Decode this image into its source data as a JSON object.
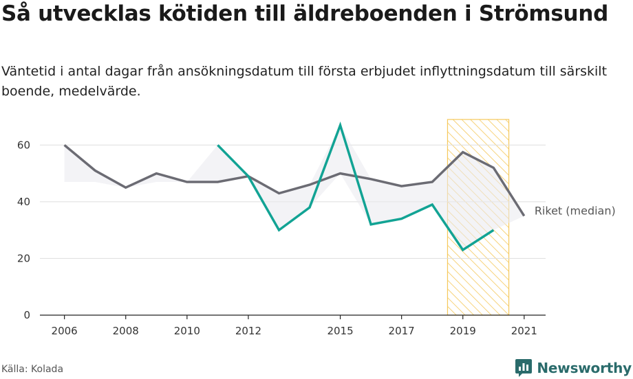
{
  "title": "Så utvecklas kötiden till äldreboenden i Strömsund",
  "subtitle": "Väntetid i antal dagar från ansökningsdatum till första erbjudet inflyttningsdatum till särskilt boende, medelvärde.",
  "source": "Källa: Kolada",
  "brand": {
    "name": "Newsworthy",
    "logo_icon": "bar-chart-speech-bubble-icon"
  },
  "chart_data": {
    "type": "line",
    "xlim": [
      2005.2,
      2021.7
    ],
    "ylim": [
      0,
      70
    ],
    "grid": true,
    "x_ticks": [
      2006,
      2008,
      2010,
      2012,
      2015,
      2017,
      2019,
      2021
    ],
    "y_ticks": [
      0,
      20,
      40,
      60
    ],
    "highlight": {
      "x_start": 2018.5,
      "x_end": 2020.5,
      "color": "#f5c85a"
    },
    "series": [
      {
        "name": "Riket (median)",
        "color": "#6b6b73",
        "x": [
          2006,
          2007,
          2008,
          2009,
          2010,
          2011,
          2012,
          2013,
          2014,
          2015,
          2016,
          2017,
          2018,
          2019,
          2020,
          2021
        ],
        "values": [
          60,
          51,
          45,
          50,
          47,
          47,
          49,
          43,
          46,
          50,
          48,
          45.5,
          47,
          57.5,
          52,
          35
        ]
      },
      {
        "name": "",
        "color": "#12a394",
        "x": [
          2011,
          2012,
          2013,
          2014,
          2015,
          2016,
          2017,
          2018,
          2019,
          2020
        ],
        "values": [
          60,
          49,
          30,
          38,
          67,
          32,
          34,
          39,
          23,
          30
        ]
      }
    ]
  }
}
